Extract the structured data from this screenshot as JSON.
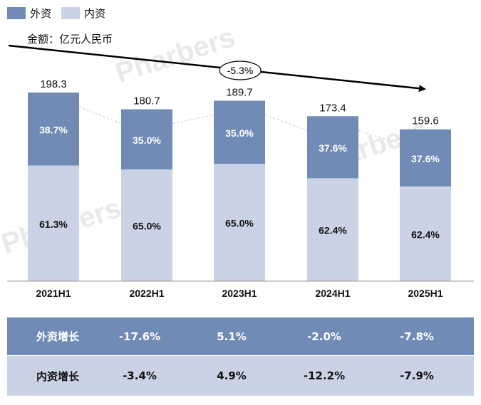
{
  "legend": {
    "items": [
      {
        "label": "外资",
        "color": "#6f8bb6"
      },
      {
        "label": "内资",
        "color": "#c9d3e5"
      }
    ]
  },
  "unit_label": "金额：亿元人民币",
  "trend_label": "-5.3%",
  "watermark": "Pharbers",
  "chart_data": {
    "type": "bar",
    "stacked": true,
    "categories": [
      "2021H1",
      "2022H1",
      "2023H1",
      "2024H1",
      "2025H1"
    ],
    "totals": [
      198.3,
      180.7,
      189.7,
      173.4,
      159.6
    ],
    "total_labels": [
      "198.3",
      "180.7",
      "189.7",
      "173.4",
      "159.6"
    ],
    "series": [
      {
        "name": "内资",
        "shares": [
          61.3,
          65.0,
          65.0,
          62.4,
          62.4
        ],
        "labels": [
          "61.3%",
          "65.0%",
          "65.0%",
          "62.4%",
          "62.4%"
        ],
        "color": "#c9d3e5"
      },
      {
        "name": "外资",
        "shares": [
          38.7,
          35.0,
          35.0,
          37.6,
          37.6
        ],
        "labels": [
          "38.7%",
          "35.0%",
          "35.0%",
          "37.6%",
          "37.6%"
        ],
        "color": "#6f8bb6"
      }
    ],
    "annotation": "-5.3%",
    "grid": false
  },
  "growth_table": {
    "rows": [
      {
        "name": "外资增长",
        "values": [
          "-17.6%",
          "5.1%",
          "-2.0%",
          "-7.8%"
        ]
      },
      {
        "name": "内资增长",
        "values": [
          "-3.4%",
          "4.9%",
          "-12.2%",
          "-7.9%"
        ]
      }
    ]
  }
}
